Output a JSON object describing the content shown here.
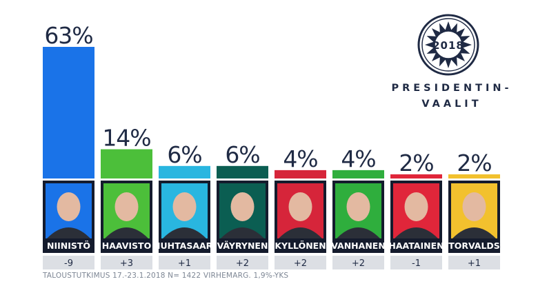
{
  "chart_data": {
    "type": "bar",
    "categories": [
      "NIINISTÖ",
      "HAAVISTO",
      "HUHTASAARI",
      "VÄYRYNEN",
      "KYLLÖNEN",
      "VANHANEN",
      "HAATAINEN",
      "TORVALDS"
    ],
    "values": [
      63,
      14,
      6,
      6,
      4,
      4,
      2,
      2
    ],
    "value_labels": [
      "63%",
      "14%",
      "6%",
      "6%",
      "4%",
      "4%",
      "2%",
      "2%"
    ],
    "changes": [
      "-9",
      "+3",
      "+1",
      "+2",
      "+2",
      "+2",
      "-1",
      "+1"
    ],
    "colors": [
      "#1a73e8",
      "#4cbf3a",
      "#29b6e0",
      "#0b5e52",
      "#d6253a",
      "#2fae3d",
      "#e0263a",
      "#f2c12e"
    ],
    "ylim": [
      0,
      63
    ],
    "grid": false,
    "legend": "none"
  },
  "footnote": "TALOUSTUTKIMUS 17.-23.1.2018 N= 1422 VIRHEMARG. 1,9%-YKS",
  "logo": {
    "year": "2018",
    "line1": "PRESIDENTIN-",
    "line2": "VAALIT"
  },
  "colors": {
    "text_dark": "#1f2a44",
    "change_box": "#dcdfe4",
    "name_box": "#141b2d"
  }
}
